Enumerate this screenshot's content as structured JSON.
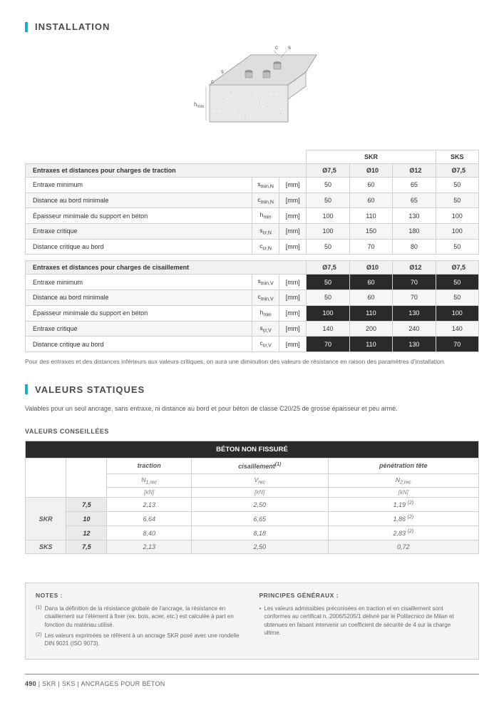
{
  "sections": {
    "installation": {
      "title": "INSTALLATION"
    },
    "static_values": {
      "title": "VALEURS STATIQUES",
      "intro": "Valables pour un seul ancrage, sans entraxe, ni distance au bord et pour béton de classe C20/25 de grosse épaisseur et peu armé.",
      "subheading": "VALEURS CONSEILLÉES"
    }
  },
  "diagram": {
    "labels": {
      "c1": "c",
      "c2": "c",
      "s1": "s",
      "s2": "s",
      "hmin": "hmin"
    },
    "colors": {
      "stroke": "#6a6a6a",
      "fill_top": "#d9d9d9",
      "fill_side": "#e8e8e8",
      "outline": "#9a9a9a",
      "dot": "#888888"
    }
  },
  "products": {
    "main": "SKR",
    "alt": "SKS"
  },
  "sizes": [
    "Ø7,5",
    "Ø10",
    "Ø12"
  ],
  "table1": {
    "section_label": "Entraxes et distances pour charges de traction",
    "unit": "[mm]",
    "rows": [
      {
        "label": "Entraxe minimum",
        "symbol": "s",
        "sub": "min,N",
        "vals": [
          "50",
          "60",
          "65",
          "50"
        ]
      },
      {
        "label": "Distance au bord minimale",
        "symbol": "c",
        "sub": "min,N",
        "vals": [
          "50",
          "60",
          "65",
          "50"
        ]
      },
      {
        "label": "Épaisseur minimale du support en béton",
        "symbol": "h",
        "sub": "min",
        "vals": [
          "100",
          "110",
          "130",
          "100"
        ]
      },
      {
        "label": "Entraxe critique",
        "symbol": "s",
        "sub": "cr,N",
        "vals": [
          "100",
          "150",
          "180",
          "100"
        ]
      },
      {
        "label": "Distance critique au bord",
        "symbol": "c",
        "sub": "cr,N",
        "vals": [
          "50",
          "70",
          "80",
          "50"
        ]
      }
    ]
  },
  "table2": {
    "section_label": "Entraxes et distances pour charges de cisaillement",
    "unit": "[mm]",
    "rows": [
      {
        "label": "Entraxe minimum",
        "symbol": "s",
        "sub": "min,V",
        "vals": [
          "50",
          "60",
          "70",
          "50"
        ],
        "black": true
      },
      {
        "label": "Distance au bord minimale",
        "symbol": "c",
        "sub": "min,V",
        "vals": [
          "50",
          "60",
          "70",
          "50"
        ],
        "black": false
      },
      {
        "label": "Épaisseur minimale du support en béton",
        "symbol": "h",
        "sub": "min",
        "vals": [
          "100",
          "110",
          "130",
          "100"
        ],
        "black": true
      },
      {
        "label": "Entraxe critique",
        "symbol": "s",
        "sub": "cr,V",
        "vals": [
          "140",
          "200",
          "240",
          "140"
        ],
        "black": false
      },
      {
        "label": "Distance critique au bord",
        "symbol": "c",
        "sub": "cr,V",
        "vals": [
          "70",
          "110",
          "130",
          "70"
        ],
        "black": true
      }
    ]
  },
  "table_caption": "Pour des entraxes et des distances inférieurs aux valeurs critiques, on aura une diminution des valeurs de résistance en raison des paramètres d'installation.",
  "values_table": {
    "header": "BÉTON NON FISSURÉ",
    "columns": [
      {
        "title": "traction",
        "symbol": "N",
        "sub": "1,rec",
        "unit": "[kN]"
      },
      {
        "title": "cisaillement",
        "sup": "(1)",
        "symbol": "V",
        "sub": "rec",
        "unit": "[kN]"
      },
      {
        "title": "pénétration tête",
        "symbol": "N",
        "sub": "2,rec",
        "unit": "[kN]"
      }
    ],
    "rows": [
      {
        "product": "SKR",
        "size": "7,5",
        "vals": [
          "2,13",
          "2,50",
          "1,19 (2)"
        ]
      },
      {
        "product": "",
        "size": "10",
        "vals": [
          "6,64",
          "6,65",
          "1,86 (2)"
        ]
      },
      {
        "product": "",
        "size": "12",
        "vals": [
          "8,40",
          "8,18",
          "2,83 (2)"
        ]
      },
      {
        "product": "SKS",
        "size": "7,5",
        "vals": [
          "2,13",
          "2,50",
          "0,72"
        ],
        "alt": true
      }
    ]
  },
  "notes": {
    "left_title": "NOTES :",
    "left": [
      {
        "num": "(1)",
        "text": "Dans la définition de la résistance globale de l'ancrage, la résistance en cisaillement sur l'élément à fixer (ex. bois, acier, etc.) est calculée à part en fonction du matériau utilisé."
      },
      {
        "num": "(2)",
        "text": "Les valeurs exprimées se réfèrent à un ancrage SKR posé avec une rondelle DIN 9021 (ISO 9073)."
      }
    ],
    "right_title": "PRINCIPES GÉNÉRAUX :",
    "right": [
      {
        "text": "Les valeurs admissibles préconisées en traction et en cisaillement sont conformes au certificat n. 2006/5205/1 délivré par le Politecnico de Milan et obtenues en faisant intervenir un coefficient de sécurité de 4 sur la charge ultime."
      }
    ]
  },
  "footer": {
    "page": "490",
    "sep": " | ",
    "products": "SKR | SKS",
    "category": "ANCRAGES POUR BÉTON"
  },
  "colors": {
    "accent": "#1aafc4"
  }
}
